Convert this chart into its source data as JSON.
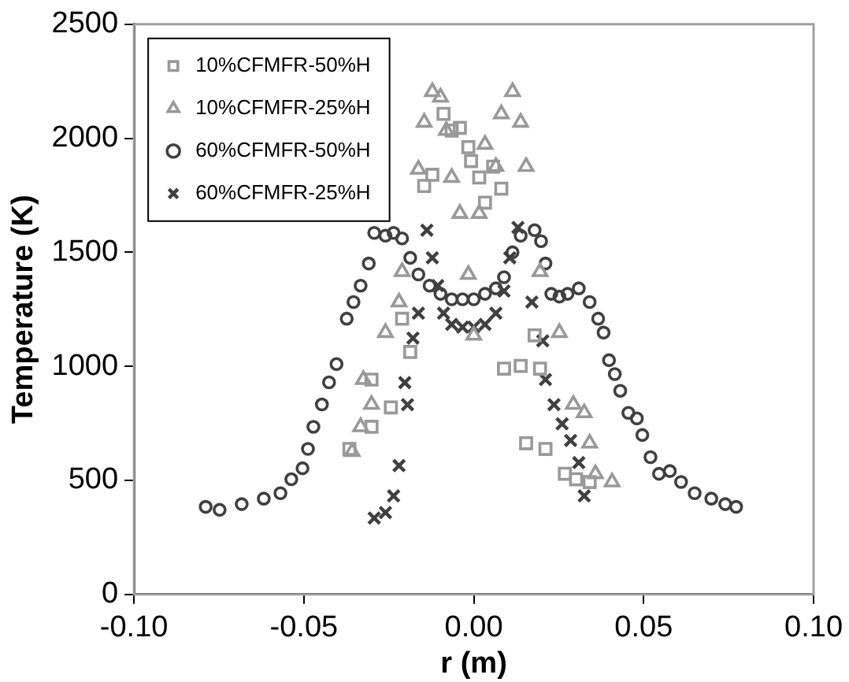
{
  "chart_data": {
    "type": "scatter",
    "xlabel": "r (m)",
    "ylabel": "Temperature (K)",
    "xlim": [
      -0.1,
      0.1
    ],
    "xticks": [
      {
        "value": -0.1,
        "label": "-0.10"
      },
      {
        "value": -0.05,
        "label": "-0.05"
      },
      {
        "value": 0,
        "label": "0.00"
      },
      {
        "value": 0.05,
        "label": "0.05"
      },
      {
        "value": 0.1,
        "label": "0.10"
      }
    ],
    "ylim": [
      0,
      2500
    ],
    "yticks": [
      0,
      500,
      1000,
      1500,
      2000,
      2500
    ],
    "grid": false,
    "legend": "top left",
    "series": [
      {
        "name": "10%CFMFR-50%H",
        "color": "#999999",
        "marker": "square",
        "x": [
          -0.0366,
          -0.0301,
          -0.0301,
          -0.0244,
          -0.0211,
          -0.0187,
          -0.0146,
          -0.0122,
          -0.0089,
          -0.0065,
          -0.0041,
          -0.0016,
          -0.0008,
          0.0016,
          0.0033,
          0.0057,
          0.0081,
          0.0089,
          0.0138,
          0.0179,
          0.0195,
          0.0154,
          0.0211,
          0.0268,
          0.0301,
          0.0341
        ],
        "values": [
          638,
          942,
          735,
          820,
          1209,
          1063,
          1791,
          1840,
          2107,
          2034,
          2046,
          1961,
          1900,
          1828,
          1718,
          1876,
          1779,
          990,
          1002,
          1136,
          990,
          663,
          638,
          529,
          505,
          493
        ]
      },
      {
        "name": "10%CFMFR-25%H",
        "color": "#999999",
        "marker": "triangle",
        "x": [
          -0.0358,
          -0.0333,
          -0.0325,
          -0.0301,
          -0.026,
          -0.022,
          -0.0211,
          -0.0163,
          -0.0146,
          -0.0122,
          -0.0098,
          -0.0081,
          -0.0065,
          -0.0041,
          -0.0016,
          0,
          0.0016,
          0.0033,
          0.0065,
          0.0081,
          0.0114,
          0.0138,
          0.0154,
          0.0195,
          0.0252,
          0.0293,
          0.0325,
          0.0341,
          0.0358,
          0.0407
        ],
        "values": [
          626,
          735,
          942,
          833,
          1148,
          1282,
          1415,
          1864,
          2070,
          2204,
          2180,
          2034,
          1828,
          1670,
          1403,
          1136,
          1670,
          1973,
          1876,
          2107,
          2204,
          2070,
          1876,
          1415,
          1148,
          833,
          796,
          663,
          529,
          493
        ]
      },
      {
        "name": "60%CFMFR-50%H",
        "color": "#404040",
        "marker": "circle",
        "x": [
          -0.0789,
          -0.0748,
          -0.0683,
          -0.0618,
          -0.0569,
          -0.0537,
          -0.0504,
          -0.0488,
          -0.0472,
          -0.0447,
          -0.0426,
          -0.0404,
          -0.0374,
          -0.0354,
          -0.0333,
          -0.0309,
          -0.0293,
          -0.026,
          -0.0236,
          -0.0211,
          -0.0187,
          -0.0163,
          -0.013,
          -0.0098,
          -0.0065,
          -0.0033,
          0,
          0.0033,
          0.0065,
          0.0089,
          0.0114,
          0.0138,
          0.0179,
          0.0198,
          0.0211,
          0.0228,
          0.0252,
          0.0276,
          0.0309,
          0.0341,
          0.0366,
          0.0382,
          0.0398,
          0.0415,
          0.0431,
          0.0455,
          0.048,
          0.0496,
          0.052,
          0.0545,
          0.0577,
          0.061,
          0.065,
          0.0699,
          0.074,
          0.0772
        ],
        "values": [
          384,
          371,
          396,
          420,
          444,
          505,
          553,
          638,
          735,
          833,
          930,
          1010,
          1209,
          1282,
          1354,
          1451,
          1585,
          1573,
          1585,
          1561,
          1476,
          1403,
          1354,
          1318,
          1294,
          1294,
          1294,
          1318,
          1342,
          1391,
          1500,
          1573,
          1597,
          1549,
          1451,
          1318,
          1306,
          1318,
          1342,
          1282,
          1209,
          1148,
          1027,
          966,
          893,
          796,
          772,
          699,
          602,
          529,
          541,
          493,
          444,
          420,
          396,
          384
        ]
      },
      {
        "name": "60%CFMFR-25%H",
        "color": "#404040",
        "marker": "cross",
        "x": [
          -0.0293,
          -0.026,
          -0.0236,
          -0.022,
          -0.0195,
          -0.0203,
          -0.0179,
          -0.0163,
          -0.0138,
          -0.0122,
          -0.0106,
          -0.0089,
          -0.0065,
          -0.0033,
          0,
          0.0033,
          0.0065,
          0.0089,
          0.0106,
          0.013,
          0.0171,
          0.0203,
          0.0211,
          0.0236,
          0.026,
          0.0285,
          0.0309,
          0.0325
        ],
        "values": [
          335,
          359,
          432,
          565,
          832,
          929,
          1124,
          1233,
          1597,
          1476,
          1354,
          1233,
          1184,
          1172,
          1172,
          1184,
          1233,
          1330,
          1476,
          1609,
          1282,
          1112,
          942,
          832,
          748,
          675,
          578,
          432
        ]
      }
    ]
  }
}
